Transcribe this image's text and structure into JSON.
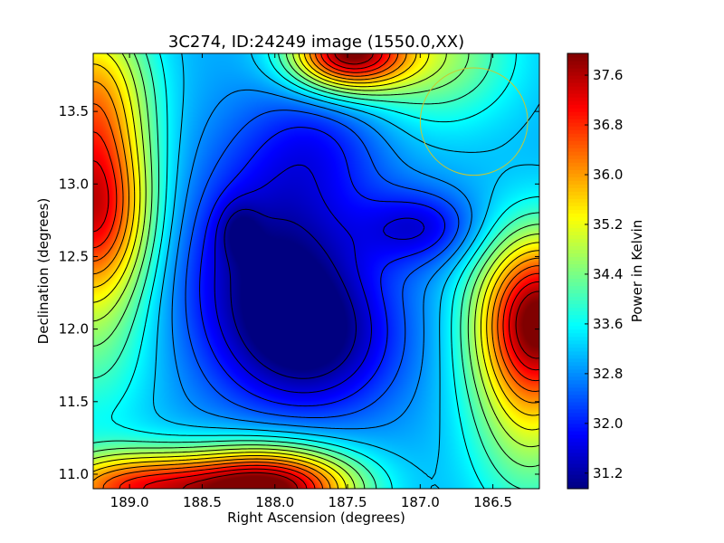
{
  "chart_data": {
    "type": "heatmap",
    "title": "3C274, ID:24249 image (1550.0,XX)",
    "xlabel": "Right Ascension (degrees)",
    "ylabel": "Declination (degrees)",
    "xlim": [
      189.25,
      186.18
    ],
    "ylim": [
      10.9,
      13.9
    ],
    "x_ticks": [
      {
        "value": 189.0,
        "label": "189.0"
      },
      {
        "value": 188.5,
        "label": "188.5"
      },
      {
        "value": 188.0,
        "label": "188.0"
      },
      {
        "value": 187.5,
        "label": "187.5"
      },
      {
        "value": 187.0,
        "label": "187.0"
      },
      {
        "value": 186.5,
        "label": "186.5"
      }
    ],
    "y_ticks": [
      {
        "value": 11.0,
        "label": "11.0"
      },
      {
        "value": 11.5,
        "label": "11.5"
      },
      {
        "value": 12.0,
        "label": "12.0"
      },
      {
        "value": 12.5,
        "label": "12.5"
      },
      {
        "value": 13.0,
        "label": "13.0"
      },
      {
        "value": 13.5,
        "label": "13.5"
      }
    ],
    "colorbar": {
      "label": "Power in Kelvin",
      "colormap": "jet",
      "range": [
        30.95,
        37.95
      ],
      "ticks": [
        {
          "value": 31.2,
          "label": "31.2"
        },
        {
          "value": 32.0,
          "label": "32.0"
        },
        {
          "value": 32.8,
          "label": "32.8"
        },
        {
          "value": 33.6,
          "label": "33.6"
        },
        {
          "value": 34.4,
          "label": "34.4"
        },
        {
          "value": 35.2,
          "label": "35.2"
        },
        {
          "value": 36.0,
          "label": "36.0"
        },
        {
          "value": 36.8,
          "label": "36.8"
        },
        {
          "value": 37.6,
          "label": "37.6"
        }
      ]
    },
    "contours": {
      "color": "#000000",
      "start": 31.2,
      "step": 0.4,
      "count": 17
    },
    "field": {
      "baseline": 33.0,
      "components": [
        {
          "ra": 188.0,
          "dec": 10.9,
          "amplitude": 4.6,
          "sigma_ra": 0.4,
          "sigma_dec": 0.2
        },
        {
          "ra": 188.9,
          "dec": 10.9,
          "amplitude": 3.8,
          "sigma_ra": 0.5,
          "sigma_dec": 0.18
        },
        {
          "ra": 187.5,
          "dec": 13.9,
          "amplitude": 4.6,
          "sigma_ra": 0.28,
          "sigma_dec": 0.18
        },
        {
          "ra": 186.9,
          "dec": 13.9,
          "amplitude": 1.6,
          "sigma_ra": 0.4,
          "sigma_dec": 0.35
        },
        {
          "ra": 186.18,
          "dec": 12.1,
          "amplitude": 4.6,
          "sigma_ra": 0.3,
          "sigma_dec": 0.4
        },
        {
          "ra": 186.25,
          "dec": 11.4,
          "amplitude": 1.6,
          "sigma_ra": 0.3,
          "sigma_dec": 0.5
        },
        {
          "ra": 189.25,
          "dec": 12.8,
          "amplitude": 3.6,
          "sigma_ra": 0.28,
          "sigma_dec": 0.4
        },
        {
          "ra": 189.25,
          "dec": 13.6,
          "amplitude": 2.8,
          "sigma_ra": 0.28,
          "sigma_dec": 0.45
        },
        {
          "ra": 189.25,
          "dec": 12.0,
          "amplitude": 1.2,
          "sigma_ra": 0.3,
          "sigma_dec": 0.5
        },
        {
          "ra": 188.0,
          "dec": 12.4,
          "amplitude": -2.0,
          "sigma_ra": 0.45,
          "sigma_dec": 0.55
        },
        {
          "ra": 187.7,
          "dec": 11.9,
          "amplitude": -1.4,
          "sigma_ra": 0.4,
          "sigma_dec": 0.35
        },
        {
          "ra": 188.25,
          "dec": 12.68,
          "amplitude": -0.7,
          "sigma_ra": 0.1,
          "sigma_dec": 0.14
        },
        {
          "ra": 187.0,
          "dec": 12.7,
          "amplitude": -1.3,
          "sigma_ra": 0.28,
          "sigma_dec": 0.18
        },
        {
          "ra": 187.7,
          "dec": 13.3,
          "amplitude": -0.8,
          "sigma_ra": 0.35,
          "sigma_dec": 0.3
        }
      ]
    },
    "beam_circle": {
      "ra": 186.63,
      "dec": 13.43,
      "radius_deg": 0.37,
      "color": "#c8c832"
    }
  }
}
